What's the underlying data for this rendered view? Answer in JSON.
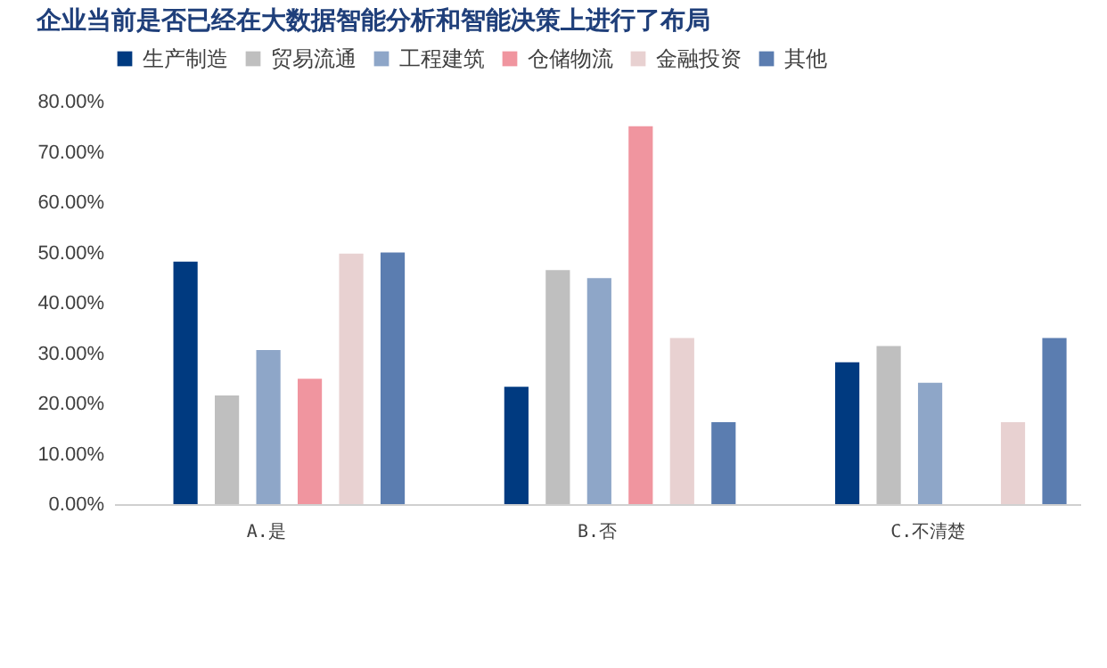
{
  "chart_data": {
    "type": "bar",
    "title": "企业当前是否已经在大数据智能分析和智能决策上进行了布局",
    "categories": [
      "A.是",
      "B.否",
      "C.不清楚"
    ],
    "series": [
      {
        "name": "生产制造",
        "color": "#003a80",
        "values": [
          48.2,
          23.3,
          28.2
        ]
      },
      {
        "name": "贸易流通",
        "color": "#bfbfbf",
        "values": [
          21.6,
          46.5,
          31.4
        ]
      },
      {
        "name": "工程建筑",
        "color": "#8ea6c8",
        "values": [
          30.6,
          44.9,
          24.1
        ]
      },
      {
        "name": "仓储物流",
        "color": "#f0959f",
        "values": [
          24.9,
          75.1,
          0
        ]
      },
      {
        "name": "金融投资",
        "color": "#e8d1d1",
        "values": [
          49.8,
          33.0,
          16.3
        ]
      },
      {
        "name": "其他",
        "color": "#5b7db0",
        "values": [
          50.0,
          16.3,
          33.0
        ]
      }
    ],
    "ylim": [
      0,
      80
    ],
    "yticks": [
      {
        "value": 0,
        "label": "0.00%"
      },
      {
        "value": 10,
        "label": "10.00%"
      },
      {
        "value": 20,
        "label": "20.00%"
      },
      {
        "value": 30,
        "label": "30.00%"
      },
      {
        "value": 40,
        "label": "40.00%"
      },
      {
        "value": 50,
        "label": "50.00%"
      },
      {
        "value": 60,
        "label": "60.00%"
      },
      {
        "value": 70,
        "label": "70.00%"
      },
      {
        "value": 80,
        "label": "80.00%"
      }
    ],
    "grid": false,
    "legend": "top"
  }
}
